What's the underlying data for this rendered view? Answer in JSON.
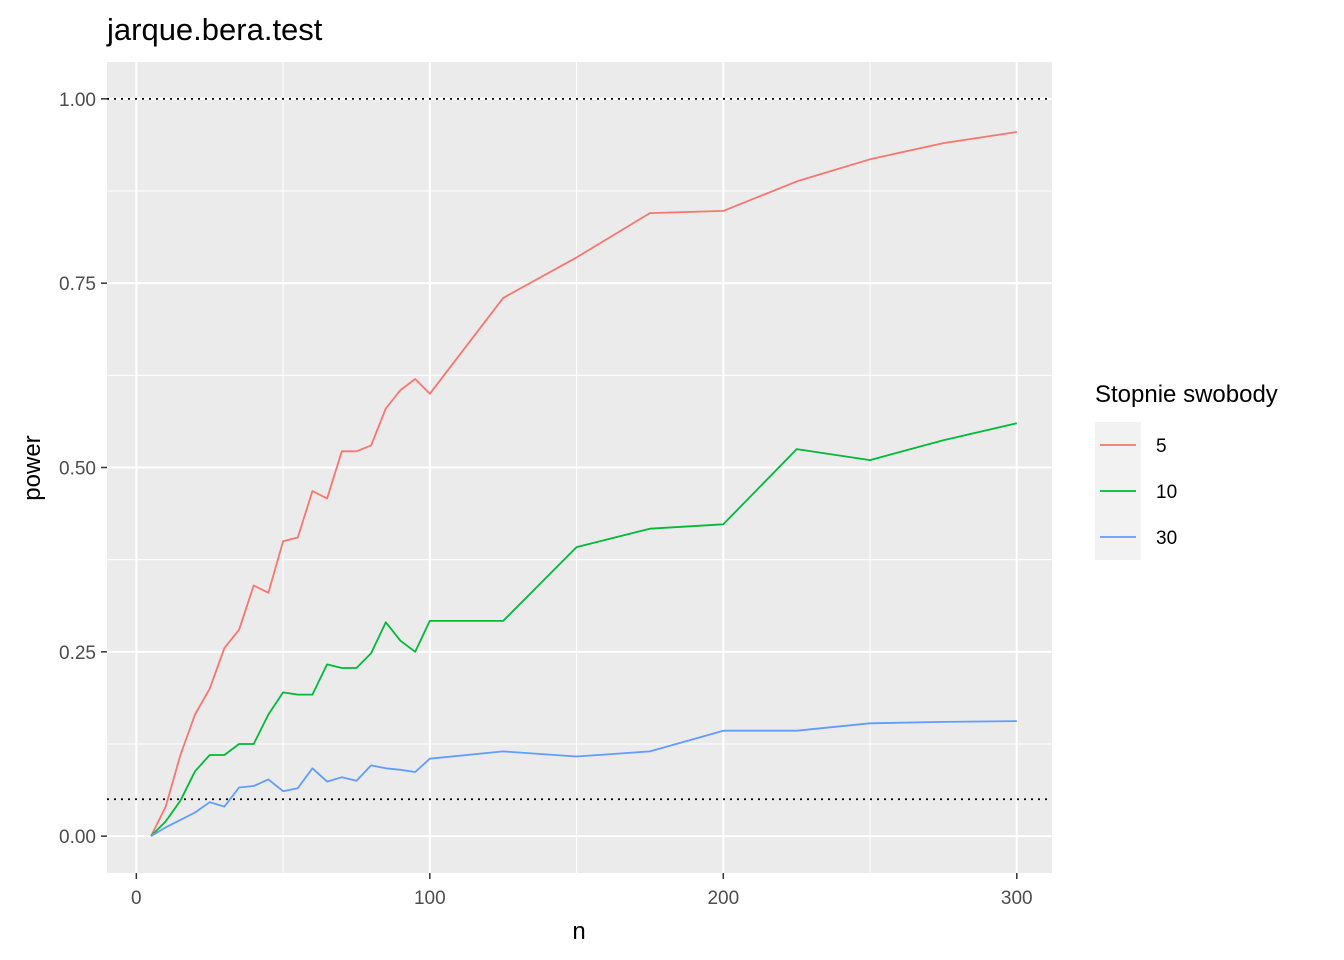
{
  "chart_data": {
    "type": "line",
    "title": "jarque.bera.test",
    "xlabel": "n",
    "ylabel": "power",
    "xlim": [
      -10,
      312
    ],
    "ylim": [
      -0.05,
      1.05
    ],
    "x_ticks": [
      0,
      100,
      200,
      300
    ],
    "x_tick_labels": [
      "0",
      "100",
      "200",
      "300"
    ],
    "y_ticks": [
      0,
      0.25,
      0.5,
      0.75,
      1
    ],
    "y_tick_labels": [
      "0.00",
      "0.25",
      "0.50",
      "0.75",
      "1.00"
    ],
    "grid": true,
    "reference_lines": [
      1.0,
      0.05
    ],
    "legend": {
      "title": "Stopnie swobody",
      "position": "right"
    },
    "series": [
      {
        "name": "5",
        "color": "#F8766D",
        "points": [
          [
            5,
            0
          ],
          [
            10,
            0.04
          ],
          [
            15,
            0.11
          ],
          [
            20,
            0.165
          ],
          [
            25,
            0.2
          ],
          [
            30,
            0.255
          ],
          [
            35,
            0.28
          ],
          [
            40,
            0.34
          ],
          [
            45,
            0.33
          ],
          [
            50,
            0.4
          ],
          [
            55,
            0.405
          ],
          [
            60,
            0.468
          ],
          [
            65,
            0.458
          ],
          [
            70,
            0.522
          ],
          [
            75,
            0.522
          ],
          [
            80,
            0.53
          ],
          [
            85,
            0.58
          ],
          [
            90,
            0.605
          ],
          [
            95,
            0.62
          ],
          [
            100,
            0.6
          ],
          [
            125,
            0.73
          ],
          [
            150,
            0.785
          ],
          [
            175,
            0.845
          ],
          [
            200,
            0.848
          ],
          [
            225,
            0.888
          ],
          [
            250,
            0.918
          ],
          [
            275,
            0.94
          ],
          [
            300,
            0.955
          ]
        ]
      },
      {
        "name": "10",
        "color": "#00BA38",
        "points": [
          [
            5,
            0
          ],
          [
            10,
            0.02
          ],
          [
            15,
            0.048
          ],
          [
            20,
            0.088
          ],
          [
            25,
            0.11
          ],
          [
            30,
            0.11
          ],
          [
            35,
            0.125
          ],
          [
            40,
            0.125
          ],
          [
            45,
            0.165
          ],
          [
            50,
            0.195
          ],
          [
            55,
            0.192
          ],
          [
            60,
            0.192
          ],
          [
            65,
            0.233
          ],
          [
            70,
            0.228
          ],
          [
            75,
            0.228
          ],
          [
            80,
            0.248
          ],
          [
            85,
            0.29
          ],
          [
            90,
            0.265
          ],
          [
            95,
            0.25
          ],
          [
            100,
            0.292
          ],
          [
            125,
            0.292
          ],
          [
            150,
            0.392
          ],
          [
            175,
            0.417
          ],
          [
            200,
            0.423
          ],
          [
            225,
            0.525
          ],
          [
            250,
            0.51
          ],
          [
            275,
            0.537
          ],
          [
            300,
            0.56
          ]
        ]
      },
      {
        "name": "30",
        "color": "#619CFF",
        "points": [
          [
            5,
            0
          ],
          [
            10,
            0.012
          ],
          [
            15,
            0.022
          ],
          [
            20,
            0.032
          ],
          [
            25,
            0.046
          ],
          [
            30,
            0.04
          ],
          [
            35,
            0.066
          ],
          [
            40,
            0.068
          ],
          [
            45,
            0.077
          ],
          [
            50,
            0.061
          ],
          [
            55,
            0.065
          ],
          [
            60,
            0.092
          ],
          [
            65,
            0.074
          ],
          [
            70,
            0.08
          ],
          [
            75,
            0.075
          ],
          [
            80,
            0.096
          ],
          [
            85,
            0.092
          ],
          [
            90,
            0.09
          ],
          [
            95,
            0.087
          ],
          [
            100,
            0.105
          ],
          [
            125,
            0.115
          ],
          [
            150,
            0.108
          ],
          [
            175,
            0.115
          ],
          [
            200,
            0.143
          ],
          [
            225,
            0.143
          ],
          [
            250,
            0.153
          ],
          [
            275,
            0.155
          ],
          [
            300,
            0.156
          ]
        ]
      }
    ]
  }
}
